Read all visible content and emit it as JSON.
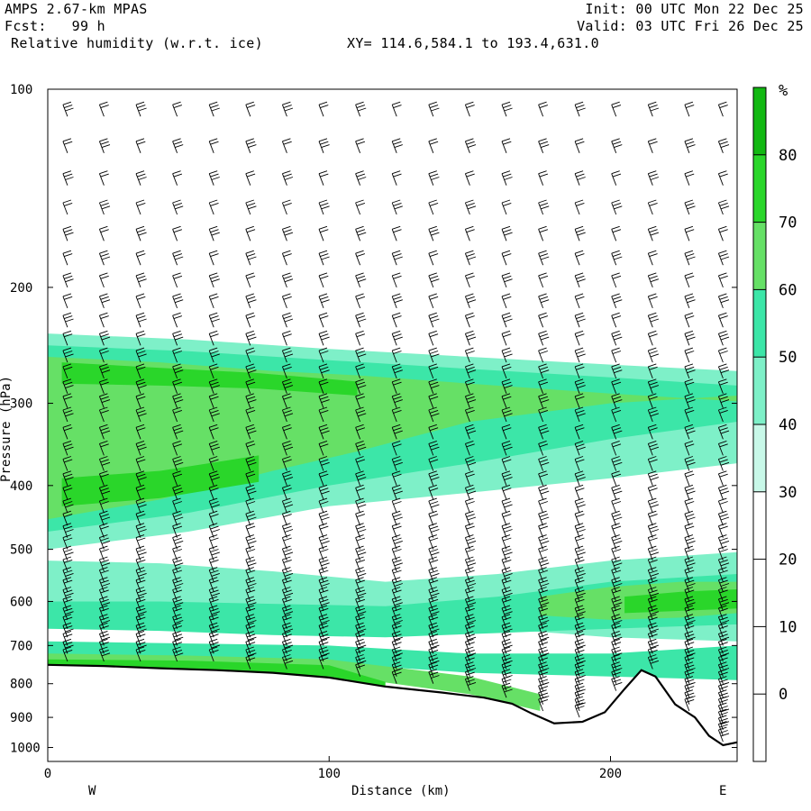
{
  "header": {
    "model": "AMPS 2.67-km MPAS",
    "fcst": "Fcst:   99 h",
    "field": "Relative humidity (w.r.t. ice)",
    "xy": "XY= 114.6,584.1 to 193.4,631.0",
    "init": "Init: 00 UTC Mon 22 Dec 25",
    "valid": "Valid: 03 UTC Fri 26 Dec 25"
  },
  "chart_data": {
    "type": "heatmap",
    "title": "Relative humidity (w.r.t. ice)",
    "xlabel": "Distance (km)",
    "ylabel": "Pressure (hPa)",
    "x_range": [
      0,
      245
    ],
    "y_range": [
      1050,
      100
    ],
    "y_scale": "log",
    "x_ticks": [
      0,
      100,
      200
    ],
    "y_ticks": [
      100,
      200,
      300,
      400,
      500,
      600,
      700,
      800,
      900,
      1000
    ],
    "x_end_labels": {
      "left": "W",
      "right": "E"
    },
    "colorbar": {
      "unit": "%",
      "levels": [
        0,
        10,
        20,
        30,
        40,
        50,
        60,
        70,
        80
      ],
      "colors": [
        "#ffffff",
        "#ffffff",
        "#ffffff",
        "#ffffff",
        "#c8f8e8",
        "#7ef0c8",
        "#3ce6a8",
        "#66e066",
        "#2ad62a",
        "#12b812"
      ]
    },
    "terrain": [
      {
        "x": 0,
        "p": 749
      },
      {
        "x": 20,
        "p": 752
      },
      {
        "x": 40,
        "p": 758
      },
      {
        "x": 60,
        "p": 763
      },
      {
        "x": 80,
        "p": 770
      },
      {
        "x": 100,
        "p": 783
      },
      {
        "x": 120,
        "p": 808
      },
      {
        "x": 140,
        "p": 825
      },
      {
        "x": 155,
        "p": 840
      },
      {
        "x": 165,
        "p": 858
      },
      {
        "x": 172,
        "p": 888
      },
      {
        "x": 180,
        "p": 919
      },
      {
        "x": 190,
        "p": 914
      },
      {
        "x": 198,
        "p": 884
      },
      {
        "x": 205,
        "p": 815
      },
      {
        "x": 211,
        "p": 763
      },
      {
        "x": 216,
        "p": 780
      },
      {
        "x": 223,
        "p": 860
      },
      {
        "x": 230,
        "p": 900
      },
      {
        "x": 235,
        "p": 960
      },
      {
        "x": 240,
        "p": 992
      },
      {
        "x": 245,
        "p": 982
      }
    ],
    "rh_layers": [
      {
        "name": "upper",
        "x": [
          0,
          50,
          100,
          150,
          200,
          245
        ],
        "top": [
          235,
          240,
          248,
          255,
          262,
          268
        ],
        "bottom": [
          500,
          470,
          430,
          410,
          390,
          370
        ],
        "level": 40
      },
      {
        "name": "upper",
        "x": [
          0,
          50,
          100,
          150,
          200,
          245
        ],
        "top": [
          245,
          250,
          258,
          266,
          274,
          282
        ],
        "bottom": [
          470,
          440,
          400,
          370,
          340,
          320
        ],
        "level": 50
      },
      {
        "name": "upper",
        "x": [
          0,
          40,
          80,
          110,
          150,
          200,
          245
        ],
        "top": [
          255,
          260,
          268,
          272,
          280,
          290,
          298
        ],
        "bottom": [
          450,
          420,
          380,
          355,
          320,
          300,
          292
        ],
        "level": 60
      },
      {
        "name": "upper",
        "x": [
          5,
          40,
          75,
          110
        ],
        "top": [
          260,
          265,
          270,
          278
        ],
        "bottom": [
          280,
          282,
          285,
          292
        ],
        "level": 70
      },
      {
        "name": "upper",
        "x": [
          5,
          40,
          75
        ],
        "top": [
          390,
          380,
          360
        ],
        "bottom": [
          430,
          418,
          395
        ],
        "level": 70
      },
      {
        "name": "mid",
        "x": [
          0,
          40,
          80,
          120,
          160,
          200,
          245
        ],
        "top": [
          520,
          525,
          540,
          560,
          545,
          520,
          505
        ],
        "bottom": [
          610,
          620,
          630,
          640,
          660,
          680,
          690
        ],
        "level": 40
      },
      {
        "name": "mid",
        "x": [
          0,
          40,
          80,
          120,
          160,
          200,
          245
        ],
        "top": [
          600,
          600,
          605,
          610,
          590,
          560,
          545
        ],
        "bottom": [
          660,
          665,
          675,
          680,
          670,
          660,
          650
        ],
        "level": 50
      },
      {
        "name": "mid",
        "x": [
          175,
          200,
          225,
          245
        ],
        "top": [
          590,
          570,
          560,
          560
        ],
        "bottom": [
          630,
          640,
          635,
          625
        ],
        "level": 60
      },
      {
        "name": "mid",
        "x": [
          205,
          225,
          245
        ],
        "top": [
          590,
          580,
          575
        ],
        "bottom": [
          625,
          620,
          615
        ],
        "level": 70
      },
      {
        "name": "low",
        "x": [
          0,
          50,
          100,
          150,
          200,
          245
        ],
        "top": [
          690,
          695,
          700,
          720,
          720,
          700
        ],
        "bottom": [
          735,
          740,
          745,
          770,
          780,
          790
        ],
        "level": 50
      },
      {
        "name": "low",
        "x": [
          0,
          50,
          100,
          150,
          175
        ],
        "top": [
          720,
          725,
          735,
          780,
          830
        ],
        "bottom": [
          752,
          758,
          775,
          830,
          880
        ],
        "level": 60
      },
      {
        "name": "low",
        "x": [
          0,
          50,
          100,
          120
        ],
        "top": [
          735,
          738,
          750,
          795
        ],
        "bottom": [
          752,
          758,
          780,
          808
        ],
        "level": 70
      }
    ],
    "wind_barb_columns_km": [
      7,
      20,
      33,
      46,
      59,
      72,
      85,
      98,
      111,
      124,
      137,
      150,
      163,
      176,
      189,
      202,
      215,
      228,
      240
    ],
    "wind_barb_levels_hpa": [
      110,
      125,
      140,
      155,
      170,
      185,
      200,
      215,
      230,
      245,
      260,
      275,
      290,
      305,
      320,
      340,
      360,
      380,
      400,
      420,
      440,
      460,
      480,
      500,
      520,
      540,
      560,
      580,
      600,
      620,
      640,
      660,
      680,
      700,
      720,
      740,
      760,
      780,
      800,
      820,
      840,
      860,
      880,
      900,
      920,
      940,
      960,
      980
    ]
  }
}
